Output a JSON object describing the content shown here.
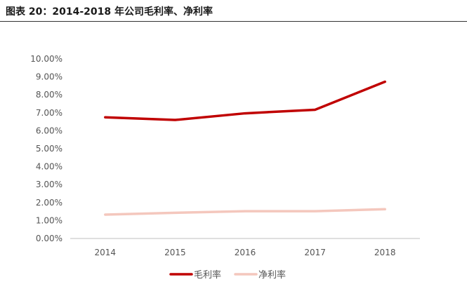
{
  "figure": {
    "title": "图表 20：2014-2018 年公司毛利率、净利率"
  },
  "colors": {
    "gross": "#c00000",
    "net": "#f4c7bd",
    "axis": "#bfbfbf",
    "text": "#555555"
  },
  "chart_data": {
    "type": "line",
    "title": "",
    "xlabel": "",
    "ylabel": "",
    "categories": [
      "2014",
      "2015",
      "2016",
      "2017",
      "2018"
    ],
    "ylim": [
      0,
      10
    ],
    "yticks": [
      "0.00%",
      "1.00%",
      "2.00%",
      "3.00%",
      "4.00%",
      "5.00%",
      "6.00%",
      "7.00%",
      "8.00%",
      "9.00%",
      "10.00%"
    ],
    "grid": false,
    "legend_position": "bottom",
    "series": [
      {
        "name": "毛利率",
        "color": "#c00000",
        "values": [
          6.75,
          6.6,
          6.97,
          7.17,
          8.73
        ]
      },
      {
        "name": "净利率",
        "color": "#f4c7bd",
        "values": [
          1.33,
          1.43,
          1.52,
          1.52,
          1.63
        ]
      }
    ]
  }
}
